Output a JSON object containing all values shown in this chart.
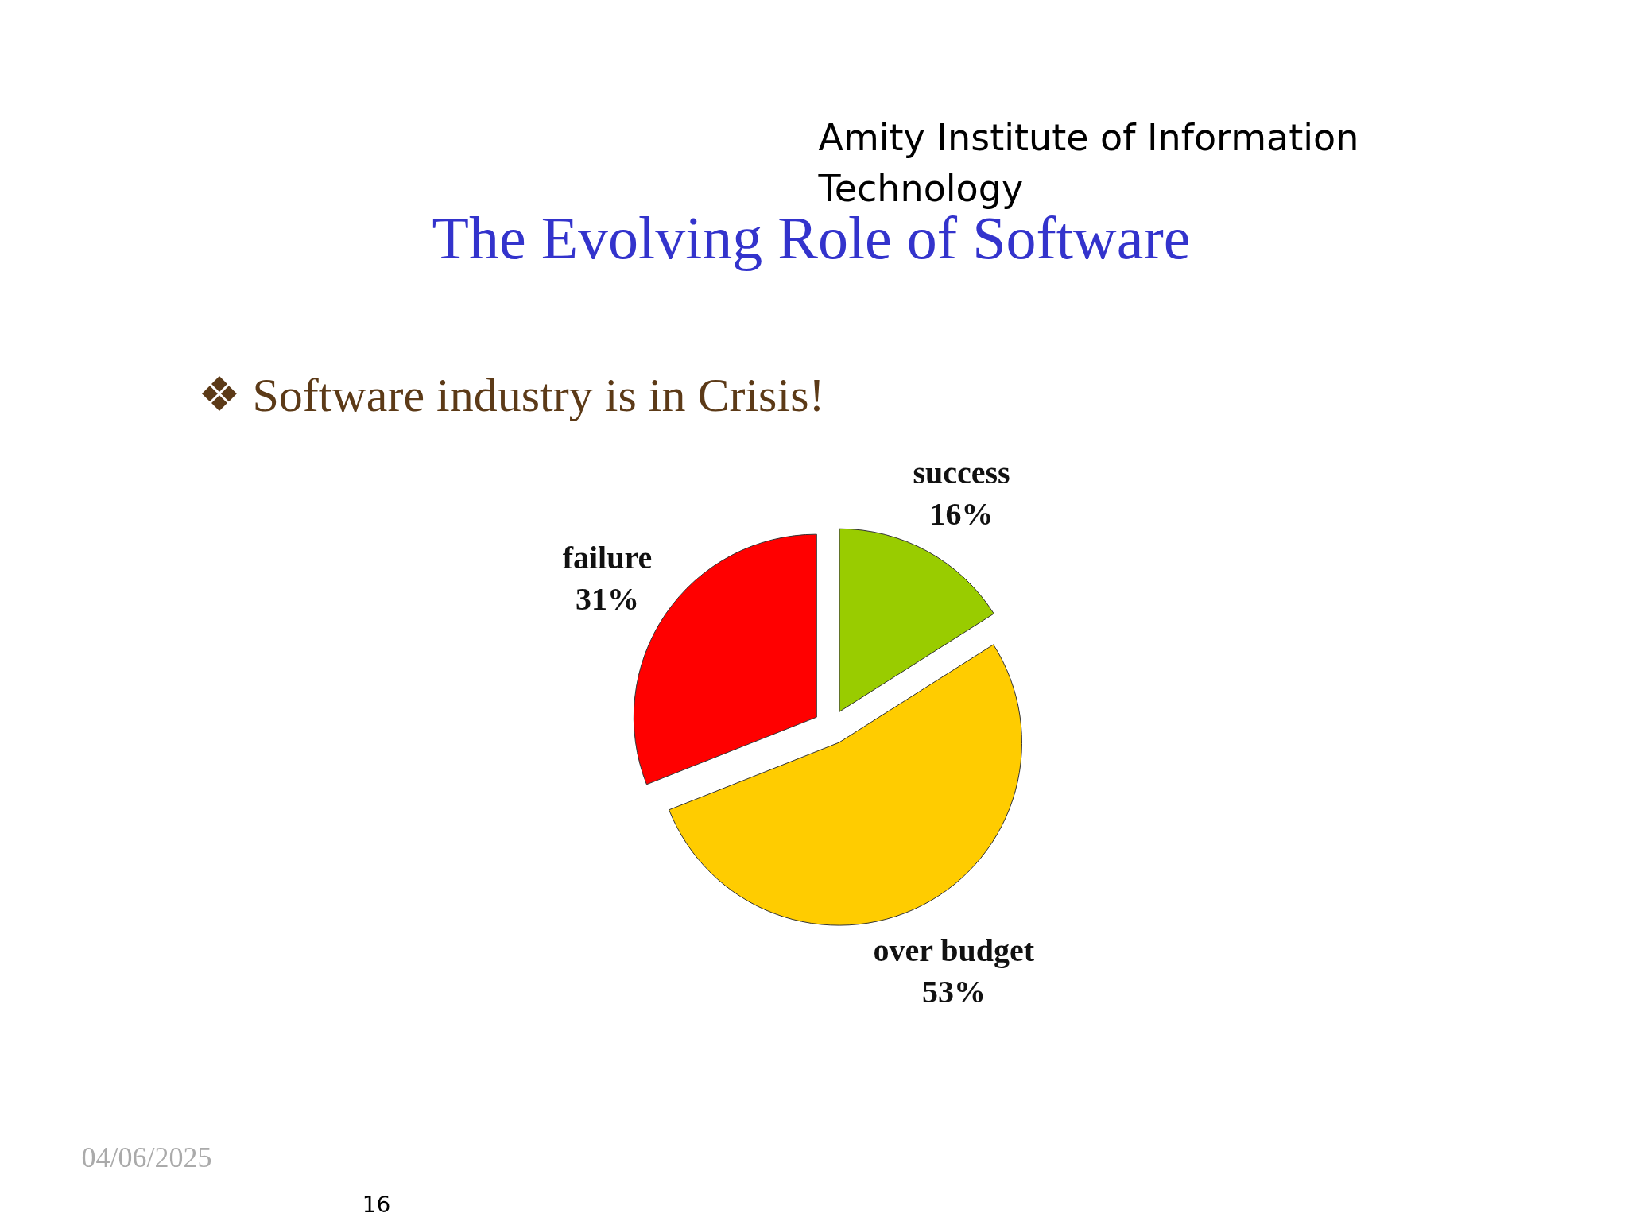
{
  "chart_data": {
    "type": "pie",
    "title": "The Evolving Role of Software",
    "subtitle": "❖ Software industry is in Crisis!",
    "categories": [
      "success",
      "over budget",
      "failure"
    ],
    "values": [
      16,
      53,
      31
    ],
    "colors": [
      "#99cc00",
      "#ffcc00",
      "#ff0000"
    ],
    "value_labels": [
      "16%",
      "53%",
      "31%"
    ],
    "annotations": [
      "Amity Institute of Information Technology",
      "04/06/2025",
      "16"
    ]
  }
}
